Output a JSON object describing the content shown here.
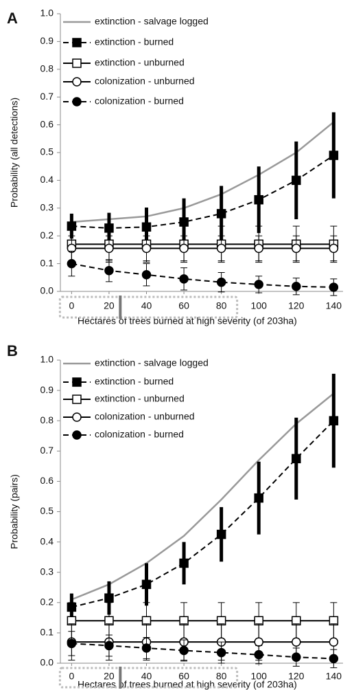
{
  "chart_data": [
    {
      "type": "line",
      "panel_label": "A",
      "ylabel": "Probability (all detections)",
      "xlabel": "Hectares of  trees burned at high severity (of 203ha)",
      "x": [
        0,
        20,
        40,
        60,
        80,
        100,
        120,
        140
      ],
      "xlim": [
        -6,
        145
      ],
      "xticks": [
        0,
        20,
        40,
        60,
        80,
        100,
        120,
        140
      ],
      "ylim": [
        0,
        1
      ],
      "yticks": [
        {
          "value": 0,
          "label": "0.0"
        },
        0.1,
        0.2,
        0.3,
        0.4,
        0.5,
        0.6,
        0.7,
        0.8,
        0.9,
        {
          "value": 1,
          "label": "1.0"
        }
      ],
      "legend_position": "upper left",
      "highlight_range": [
        0,
        80
      ],
      "reference_x": 26,
      "series": [
        {
          "name": "extinction - salvage logged",
          "color": "#999999",
          "dashed": false,
          "marker": "none",
          "values": [
            0.25,
            0.26,
            0.27,
            0.3,
            0.35,
            0.42,
            0.5,
            0.61
          ]
        },
        {
          "name": "extinction - burned",
          "color": "#000000",
          "dashed": true,
          "marker": "square-filled",
          "values": [
            0.235,
            0.228,
            0.232,
            0.25,
            0.28,
            0.33,
            0.4,
            0.49
          ],
          "errors": [
            0.045,
            0.055,
            0.07,
            0.085,
            0.1,
            0.12,
            0.14,
            0.155
          ]
        },
        {
          "name": "extinction - unburned",
          "color": "#000000",
          "dashed": false,
          "marker": "square-open",
          "values": [
            0.17,
            0.17,
            0.17,
            0.17,
            0.17,
            0.17,
            0.17,
            0.17
          ],
          "errors": [
            0.065,
            0.065,
            0.065,
            0.065,
            0.065,
            0.065,
            0.065,
            0.065
          ]
        },
        {
          "name": "colonization - unburned",
          "color": "#000000",
          "dashed": false,
          "marker": "circle-open",
          "values": [
            0.155,
            0.155,
            0.155,
            0.155,
            0.155,
            0.155,
            0.155,
            0.155
          ],
          "errors": [
            0.045,
            0.045,
            0.045,
            0.045,
            0.045,
            0.045,
            0.045,
            0.045
          ]
        },
        {
          "name": "colonization - burned",
          "color": "#000000",
          "dashed": true,
          "marker": "circle-filled",
          "values": [
            0.1,
            0.075,
            0.06,
            0.045,
            0.033,
            0.025,
            0.018,
            0.015
          ],
          "errors": [
            0.045,
            0.04,
            0.04,
            0.04,
            0.035,
            0.03,
            0.03,
            0.03
          ]
        }
      ]
    },
    {
      "type": "line",
      "panel_label": "B",
      "ylabel": "Probability (pairs)",
      "xlabel": "Hectares of  trees burned at high severity (of 203ha)",
      "x": [
        0,
        20,
        40,
        60,
        80,
        100,
        120,
        140
      ],
      "xlim": [
        -6,
        145
      ],
      "xticks": [
        0,
        20,
        40,
        60,
        80,
        100,
        120,
        140
      ],
      "ylim": [
        0,
        1
      ],
      "yticks": [
        {
          "value": 0,
          "label": "0.0"
        },
        0.1,
        0.2,
        0.3,
        0.4,
        0.5,
        0.6,
        0.7,
        0.8,
        0.9,
        {
          "value": 1,
          "label": "1.0"
        }
      ],
      "legend_position": "upper left",
      "highlight_range": [
        0,
        80
      ],
      "reference_x": 26,
      "series": [
        {
          "name": "extinction - salvage logged",
          "color": "#999999",
          "dashed": false,
          "marker": "none",
          "values": [
            0.21,
            0.26,
            0.33,
            0.42,
            0.54,
            0.67,
            0.79,
            0.89
          ]
        },
        {
          "name": "extinction - burned",
          "color": "#000000",
          "dashed": true,
          "marker": "square-filled",
          "values": [
            0.185,
            0.215,
            0.26,
            0.33,
            0.425,
            0.545,
            0.675,
            0.8
          ],
          "errors": [
            0.045,
            0.055,
            0.07,
            0.07,
            0.09,
            0.12,
            0.135,
            0.155
          ]
        },
        {
          "name": "extinction - unburned",
          "color": "#000000",
          "dashed": false,
          "marker": "square-open",
          "values": [
            0.14,
            0.14,
            0.14,
            0.14,
            0.14,
            0.14,
            0.14,
            0.14
          ],
          "errors": [
            0.06,
            0.06,
            0.06,
            0.06,
            0.06,
            0.06,
            0.06,
            0.06
          ]
        },
        {
          "name": "colonization - unburned",
          "color": "#000000",
          "dashed": false,
          "marker": "circle-open",
          "values": [
            0.07,
            0.07,
            0.07,
            0.07,
            0.07,
            0.07,
            0.07,
            0.07
          ],
          "errors": [
            0.06,
            0.06,
            0.06,
            0.06,
            0.06,
            0.06,
            0.06,
            0.06
          ]
        },
        {
          "name": "colonization - burned",
          "color": "#000000",
          "dashed": true,
          "marker": "circle-filled",
          "values": [
            0.065,
            0.058,
            0.05,
            0.042,
            0.035,
            0.028,
            0.02,
            0.015
          ],
          "errors": [
            0.04,
            0.035,
            0.035,
            0.035,
            0.035,
            0.03,
            0.03,
            0.03
          ]
        }
      ]
    }
  ]
}
